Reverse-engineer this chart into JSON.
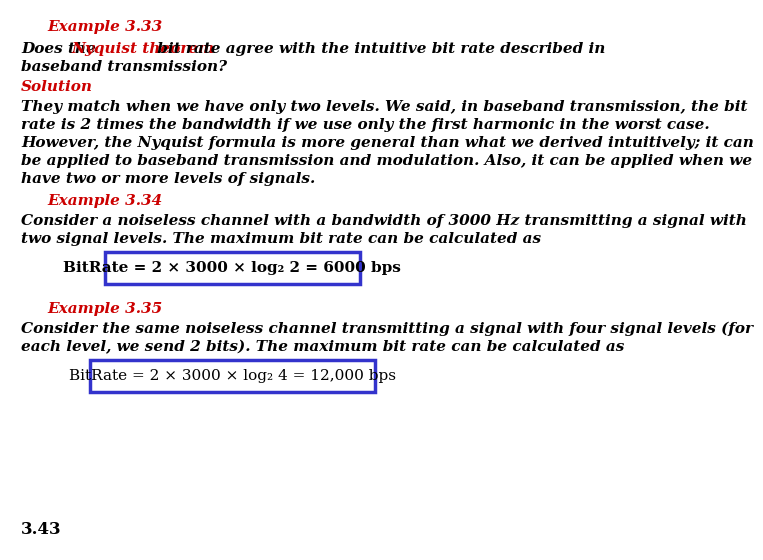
{
  "background_color": "#ffffff",
  "title_example1": "Example 3.33",
  "title_example2": "Example 3.34",
  "title_example3": "Example 3.35",
  "solution_label": "Solution",
  "example_color": "#cc0000",
  "text_color": "#000000",
  "formula1_text": "BitRate = 2 × 3000 × log₂ 2 = 6000 bps",
  "formula2_text": "BitRate = 2 × 3000 × log₂ 4 = 12,000 bps",
  "formula_box_color": "#3333cc",
  "formula_bg_color": "#ffffff",
  "page_number": "3.43",
  "para1_line1": "Does the ",
  "para1_nyquist": "Nyquist theorem",
  "para1_line1_rest": " bit rate agree with the intuitive bit rate described in",
  "para1_line2": "baseband transmission?",
  "solution_para": "They match when we have only two levels. We said, in baseband transmission, the bit\nrate is 2 times the bandwidth if we use only the first harmonic in the worst case.\nHowever, the Nyquist formula is more general than what we derived intuitively; it can\nbe applied to baseband transmission and modulation. Also, it can be applied when we\nhave two or more levels of signals.",
  "ex34_para": "Consider a noiseless channel with a bandwidth of 3000 Hz transmitting a signal with\ntwo signal levels. The maximum bit rate can be calculated as",
  "ex35_para": "Consider the same noiseless channel transmitting a signal with four signal levels (for\neach level, we send 2 bits). The maximum bit rate can be calculated as"
}
